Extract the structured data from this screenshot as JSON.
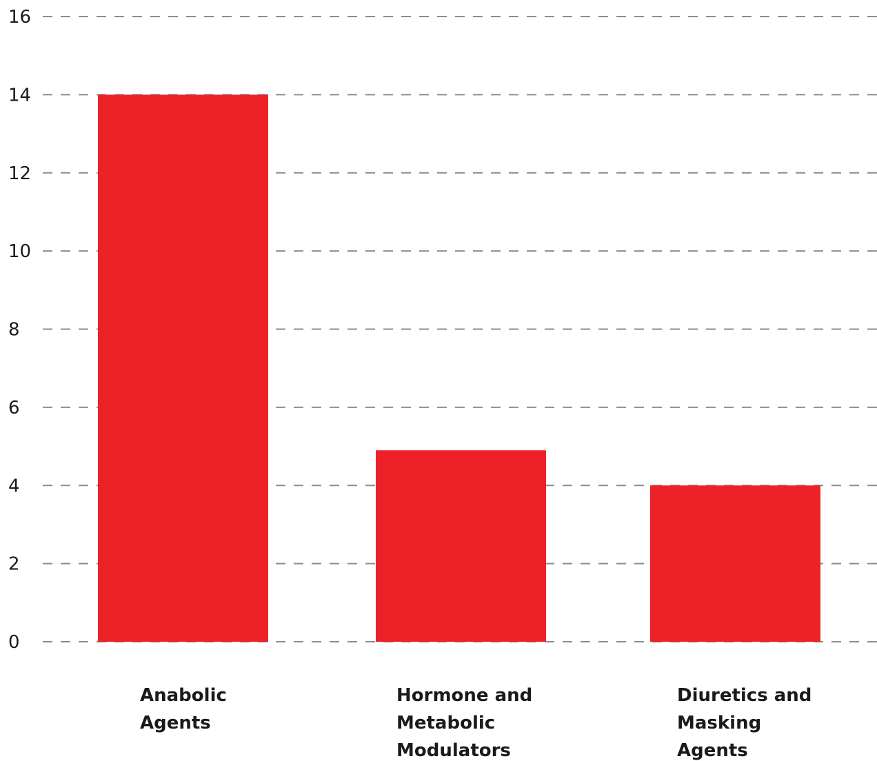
{
  "chart_data": {
    "type": "bar",
    "categories": [
      "Anabolic Agents",
      "Hormone and Metabolic Modulators",
      "Diuretics and Masking Agents"
    ],
    "category_lines": [
      [
        "Anabolic",
        "Agents"
      ],
      [
        "Hormone and",
        "Metabolic",
        "Modulators"
      ],
      [
        "Diuretics and",
        "Masking",
        "Agents"
      ]
    ],
    "values": [
      14,
      4.9,
      4
    ],
    "yticks": [
      "0",
      "2",
      "4",
      "6",
      "8",
      "10",
      "12",
      "14",
      "16"
    ],
    "ylim": [
      0,
      16
    ],
    "grid": true,
    "bar_color": "#ED2128",
    "title": "",
    "xlabel": "",
    "ylabel": ""
  }
}
